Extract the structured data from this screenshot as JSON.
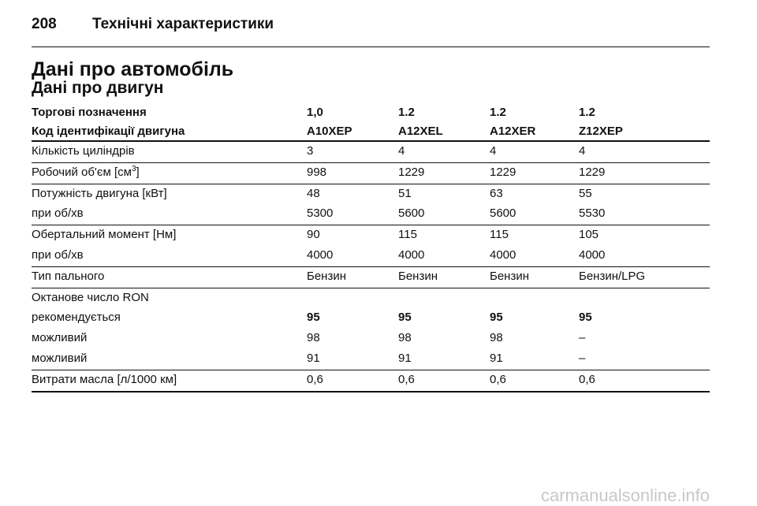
{
  "header": {
    "page_number": "208",
    "title": "Технічні характеристики"
  },
  "section_title": "Дані про автомобіль",
  "subsection_title": "Дані про двигун",
  "table": {
    "header_rows": [
      [
        "Торгові позначення",
        "1,0",
        "1.2",
        "1.2",
        "1.2"
      ],
      [
        "Код ідентифікації двигуна",
        "A10XEP",
        "A12XEL",
        "A12XER",
        "Z12XEP"
      ]
    ],
    "groups": [
      [
        {
          "cells": [
            "Кількість циліндрів",
            "3",
            "4",
            "4",
            "4"
          ]
        }
      ],
      [
        {
          "cells": [
            {
              "text": "Робочий об'єм [см",
              "sup": "3",
              "tail": "]"
            },
            "998",
            "1229",
            "1229",
            "1229"
          ]
        }
      ],
      [
        {
          "cells": [
            "Потужність двигуна [кВт]",
            "48",
            "51",
            "63",
            "55"
          ]
        },
        {
          "cells": [
            "при об/хв",
            "5300",
            "5600",
            "5600",
            "5530"
          ]
        }
      ],
      [
        {
          "cells": [
            "Обертальний момент [Нм]",
            "90",
            "115",
            "115",
            "105"
          ]
        },
        {
          "cells": [
            "при об/хв",
            "4000",
            "4000",
            "4000",
            "4000"
          ]
        }
      ],
      [
        {
          "cells": [
            "Тип пального",
            "Бензин",
            "Бензин",
            "Бензин",
            "Бензин/LPG"
          ]
        }
      ],
      [
        {
          "cells": [
            "Октанове число RON"
          ]
        },
        {
          "cells": [
            "рекомендується",
            "95",
            "95",
            "95",
            "95"
          ],
          "bold": true
        },
        {
          "cells": [
            "можливий",
            "98",
            "98",
            "98",
            "–"
          ]
        },
        {
          "cells": [
            "можливий",
            "91",
            "91",
            "91",
            "–"
          ]
        }
      ],
      [
        {
          "cells": [
            "Витрати масла [л/1000 км]",
            "0,6",
            "0,6",
            "0,6",
            "0,6"
          ]
        }
      ]
    ]
  },
  "watermark": "carmanualsonline.info"
}
